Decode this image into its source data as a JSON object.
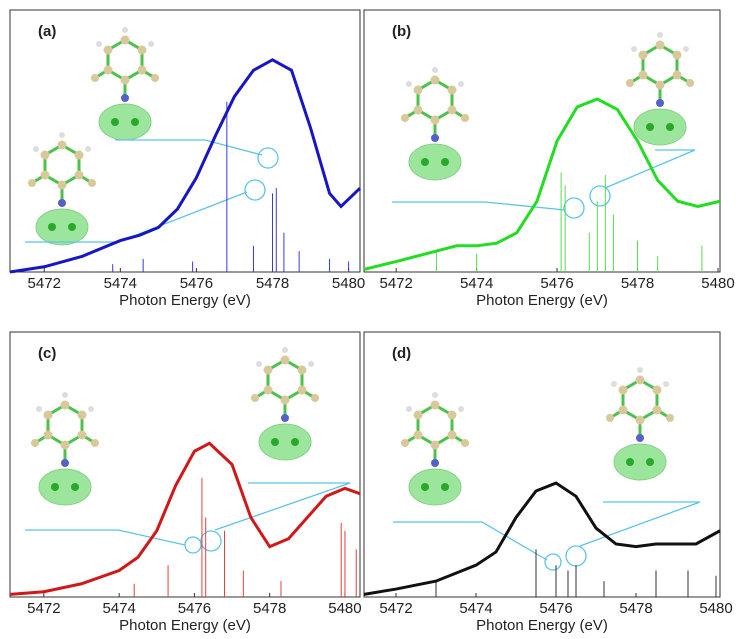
{
  "chart_data": [
    {
      "type": "line",
      "panel_label": "(a)",
      "x_label": "Photon Energy (eV)",
      "xlim": [
        5471.1,
        5480.3
      ],
      "xticks": [
        5472,
        5474,
        5476,
        5478,
        5480
      ],
      "ylim": [
        0,
        1
      ],
      "series": [
        {
          "type": "line",
          "color": "#1616c4",
          "x": [
            5471.1,
            5472,
            5473,
            5474,
            5474.5,
            5475,
            5475.5,
            5476,
            5476.5,
            5477,
            5477.5,
            5478,
            5478.5,
            5479,
            5479.5,
            5479.8,
            5480.3
          ],
          "values": [
            0.0,
            0.02,
            0.06,
            0.12,
            0.14,
            0.17,
            0.24,
            0.36,
            0.52,
            0.67,
            0.77,
            0.81,
            0.77,
            0.55,
            0.3,
            0.25,
            0.32
          ]
        },
        {
          "type": "stick",
          "color": "#3a3ad8",
          "x": [
            5473.8,
            5474.6,
            5475.9,
            5476.8,
            5477.5,
            5478.0,
            5478.1,
            5478.3,
            5478.7,
            5479.5,
            5480.0
          ],
          "values": [
            0.03,
            0.05,
            0.04,
            0.65,
            0.1,
            0.3,
            0.32,
            0.15,
            0.08,
            0.05,
            0.04
          ]
        }
      ]
    },
    {
      "type": "line",
      "panel_label": "(b)",
      "x_label": "Photon Energy (eV)",
      "xlim": [
        5471.2,
        5480.05
      ],
      "xticks": [
        5472,
        5474,
        5476,
        5478,
        5480
      ],
      "ylim": [
        0,
        1
      ],
      "series": [
        {
          "type": "line",
          "color": "#22dd22",
          "x": [
            5471.2,
            5472,
            5473,
            5473.5,
            5474,
            5474.5,
            5475,
            5475.5,
            5476,
            5476.5,
            5477,
            5477.5,
            5478,
            5478.5,
            5479,
            5479.5,
            5480.05
          ],
          "values": [
            0.01,
            0.04,
            0.08,
            0.1,
            0.1,
            0.11,
            0.15,
            0.27,
            0.5,
            0.63,
            0.66,
            0.62,
            0.5,
            0.35,
            0.27,
            0.25,
            0.27
          ]
        },
        {
          "type": "stick",
          "color": "#55dd55",
          "x": [
            5473.0,
            5474.0,
            5476.1,
            5476.2,
            5476.8,
            5477.0,
            5477.2,
            5477.4,
            5478.0,
            5478.5,
            5479.6
          ],
          "values": [
            0.08,
            0.07,
            0.38,
            0.33,
            0.15,
            0.27,
            0.37,
            0.22,
            0.12,
            0.06,
            0.1
          ]
        }
      ]
    },
    {
      "type": "line",
      "panel_label": "(c)",
      "x_label": "Photon Energy (eV)",
      "xlim": [
        5471.1,
        5480.4
      ],
      "xticks": [
        5472,
        5474,
        5476,
        5478,
        5480
      ],
      "ylim": [
        0,
        1
      ],
      "series": [
        {
          "type": "line",
          "color": "#d01818",
          "x": [
            5471.1,
            5472,
            5473,
            5474,
            5474.5,
            5475,
            5475.5,
            5476,
            5476.4,
            5477,
            5477.5,
            5478,
            5478.5,
            5479,
            5479.5,
            5480,
            5480.4
          ],
          "values": [
            0.01,
            0.02,
            0.05,
            0.1,
            0.15,
            0.25,
            0.42,
            0.55,
            0.58,
            0.5,
            0.3,
            0.19,
            0.22,
            0.3,
            0.38,
            0.41,
            0.39
          ]
        },
        {
          "type": "stick",
          "color": "#e04040",
          "x": [
            5474.4,
            5475.3,
            5476.2,
            5476.3,
            5476.8,
            5477.3,
            5478.3,
            5479.9,
            5480.0,
            5480.3
          ],
          "values": [
            0.05,
            0.12,
            0.45,
            0.3,
            0.25,
            0.1,
            0.06,
            0.28,
            0.25,
            0.18
          ]
        }
      ]
    },
    {
      "type": "line",
      "panel_label": "(d)",
      "x_label": "Photon Energy (eV)",
      "xlim": [
        5471.2,
        5480.1
      ],
      "xticks": [
        5472,
        5474,
        5476,
        5478,
        5480
      ],
      "ylim": [
        0,
        1
      ],
      "series": [
        {
          "type": "line",
          "color": "#111111",
          "x": [
            5471.2,
            5472,
            5473,
            5474,
            5474.5,
            5475,
            5475.5,
            5476,
            5476.5,
            5477,
            5477.5,
            5478,
            5478.5,
            5479,
            5479.5,
            5480.1
          ],
          "values": [
            0.01,
            0.03,
            0.06,
            0.12,
            0.17,
            0.3,
            0.4,
            0.43,
            0.38,
            0.26,
            0.2,
            0.19,
            0.2,
            0.2,
            0.2,
            0.25
          ]
        },
        {
          "type": "stick",
          "color": "#333333",
          "x": [
            5473.0,
            5475.5,
            5476.0,
            5476.3,
            5476.5,
            5477.2,
            5478.5,
            5479.3,
            5480.0
          ],
          "values": [
            0.06,
            0.18,
            0.12,
            0.1,
            0.12,
            0.06,
            0.1,
            0.1,
            0.08
          ]
        }
      ]
    }
  ]
}
